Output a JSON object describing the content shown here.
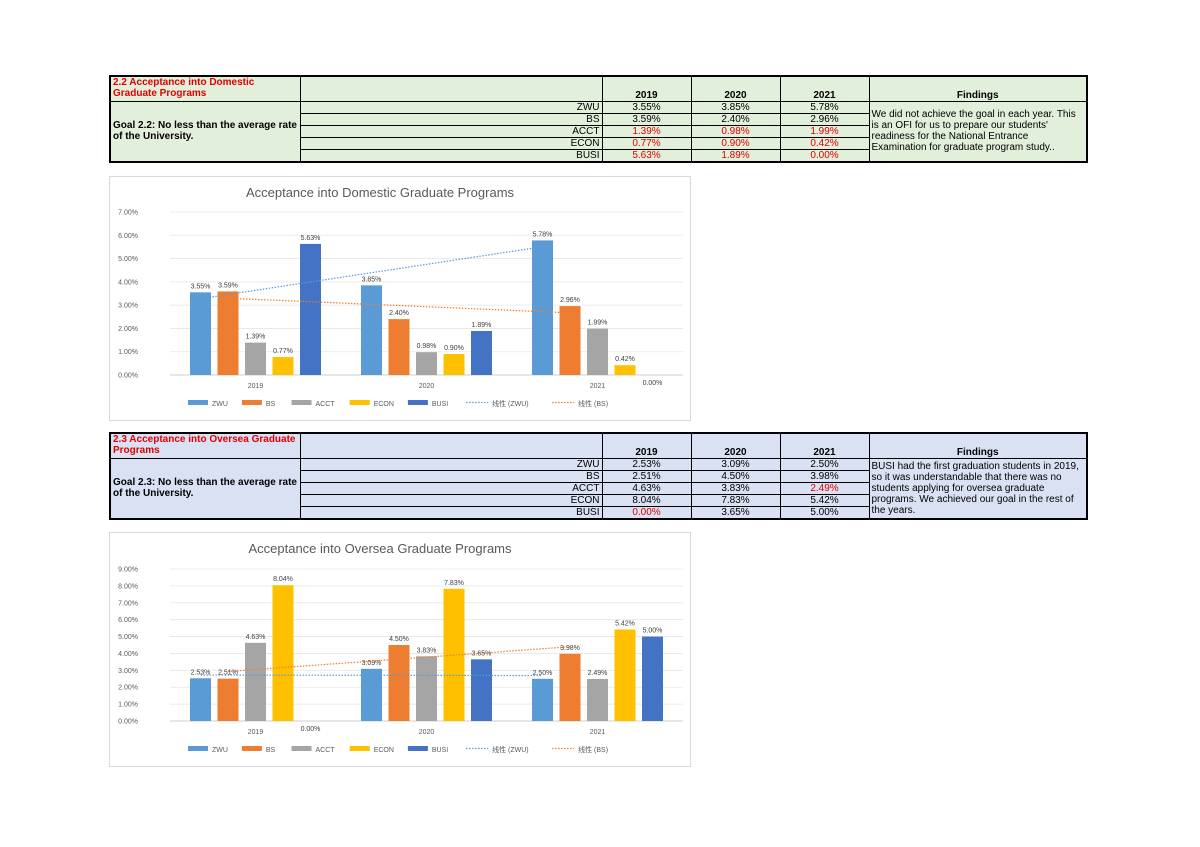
{
  "sections": [
    {
      "title": "2.2 Acceptance into Domestic Graduate Programs",
      "goal": "Goal 2.2: No less than the average rate of the University.",
      "years": [
        "2019",
        "2020",
        "2021"
      ],
      "findings_header": "Findings",
      "rows": [
        {
          "label": "ZWU",
          "cells": [
            "3.55%",
            "3.85%",
            "5.78%"
          ],
          "red": [
            false,
            false,
            false
          ]
        },
        {
          "label": "BS",
          "cells": [
            "3.59%",
            "2.40%",
            "2.96%"
          ],
          "red": [
            false,
            false,
            false
          ]
        },
        {
          "label": "ACCT",
          "cells": [
            "1.39%",
            "0.98%",
            "1.99%"
          ],
          "red": [
            true,
            true,
            true
          ]
        },
        {
          "label": "ECON",
          "cells": [
            "0.77%",
            "0.90%",
            "0.42%"
          ],
          "red": [
            true,
            true,
            true
          ]
        },
        {
          "label": "BUSI",
          "cells": [
            "5.63%",
            "1.89%",
            "0.00%"
          ],
          "red": [
            true,
            true,
            true
          ]
        }
      ],
      "findings": "We did not achieve the goal in each year. This is an OFI for us to prepare our students' readiness for the National Entrance Examination for graduate program study.."
    },
    {
      "title": "2.3 Acceptance into Oversea Graduate Programs",
      "goal": "Goal 2.3: No less than the average rate of the University.",
      "years": [
        "2019",
        "2020",
        "2021"
      ],
      "findings_header": "Findings",
      "rows": [
        {
          "label": "ZWU",
          "cells": [
            "2.53%",
            "3.09%",
            "2.50%"
          ],
          "red": [
            false,
            false,
            false
          ]
        },
        {
          "label": "BS",
          "cells": [
            "2.51%",
            "4.50%",
            "3.98%"
          ],
          "red": [
            false,
            false,
            false
          ]
        },
        {
          "label": "ACCT",
          "cells": [
            "4.63%",
            "3.83%",
            "2.49%"
          ],
          "red": [
            false,
            false,
            true
          ]
        },
        {
          "label": "ECON",
          "cells": [
            "8.04%",
            "7.83%",
            "5.42%"
          ],
          "red": [
            false,
            false,
            false
          ]
        },
        {
          "label": "BUSI",
          "cells": [
            "0.00%",
            "3.65%",
            "5.00%"
          ],
          "red": [
            true,
            false,
            false
          ]
        }
      ],
      "findings": "BUSI had the first graduation students in 2019, so it was understandable that there was no students applying for oversea graduate programs. We achieved our goal in the rest of the years."
    }
  ],
  "colors": {
    "ZWU": "#5b9bd5",
    "BS": "#ed7d31",
    "ACCT": "#a5a5a5",
    "ECON": "#ffc000",
    "BUSI": "#4472c4",
    "red_text": "#e00000"
  },
  "chart_data": [
    {
      "type": "bar",
      "title": "Acceptance into Domestic Graduate Programs",
      "categories": [
        "2019",
        "2020",
        "2021"
      ],
      "series": [
        {
          "name": "ZWU",
          "values": [
            3.55,
            3.85,
            5.78
          ],
          "labels": [
            "3.55%",
            "3.85%",
            "5.78%"
          ]
        },
        {
          "name": "BS",
          "values": [
            3.59,
            2.4,
            2.96
          ],
          "labels": [
            "3.59%",
            "2.40%",
            "2.96%"
          ]
        },
        {
          "name": "ACCT",
          "values": [
            1.39,
            0.98,
            1.99
          ],
          "labels": [
            "1.39%",
            "0.98%",
            "1.99%"
          ]
        },
        {
          "name": "ECON",
          "values": [
            0.77,
            0.9,
            0.42
          ],
          "labels": [
            "0.77%",
            "0.90%",
            "0.42%"
          ]
        },
        {
          "name": "BUSI",
          "values": [
            5.63,
            1.89,
            0.0
          ],
          "labels": [
            "5.63%",
            "1.89%",
            "0.00%"
          ]
        }
      ],
      "trendlines": [
        {
          "name": "线性 (ZWU)",
          "series": "ZWU"
        },
        {
          "name": "线性 (BS)",
          "series": "BS"
        }
      ],
      "yticks": [
        "0.00%",
        "1.00%",
        "2.00%",
        "3.00%",
        "4.00%",
        "5.00%",
        "6.00%",
        "7.00%"
      ],
      "ylim": [
        0,
        7
      ],
      "legend": "bottom"
    },
    {
      "type": "bar",
      "title": "Acceptance into Oversea Graduate Programs",
      "categories": [
        "2019",
        "2020",
        "2021"
      ],
      "series": [
        {
          "name": "ZWU",
          "values": [
            2.53,
            3.09,
            2.5
          ],
          "labels": [
            "2.53%",
            "3.09%",
            "2.50%"
          ]
        },
        {
          "name": "BS",
          "values": [
            2.51,
            4.5,
            3.98
          ],
          "labels": [
            "2.51%",
            "4.50%",
            "3.98%"
          ]
        },
        {
          "name": "ACCT",
          "values": [
            4.63,
            3.83,
            2.49
          ],
          "labels": [
            "4.63%",
            "3.83%",
            "2.49%"
          ]
        },
        {
          "name": "ECON",
          "values": [
            8.04,
            7.83,
            5.42
          ],
          "labels": [
            "8.04%",
            "7.83%",
            "5.42%"
          ]
        },
        {
          "name": "BUSI",
          "values": [
            0.0,
            3.65,
            5.0
          ],
          "labels": [
            "0.00%",
            "3.65%",
            "5.00%"
          ]
        }
      ],
      "trendlines": [
        {
          "name": "线性 (ZWU)",
          "series": "ZWU"
        },
        {
          "name": "线性 (BS)",
          "series": "BS"
        }
      ],
      "yticks": [
        "0.00%",
        "1.00%",
        "2.00%",
        "3.00%",
        "4.00%",
        "5.00%",
        "6.00%",
        "7.00%",
        "8.00%",
        "9.00%"
      ],
      "ylim": [
        0,
        9
      ],
      "legend": "bottom"
    }
  ]
}
